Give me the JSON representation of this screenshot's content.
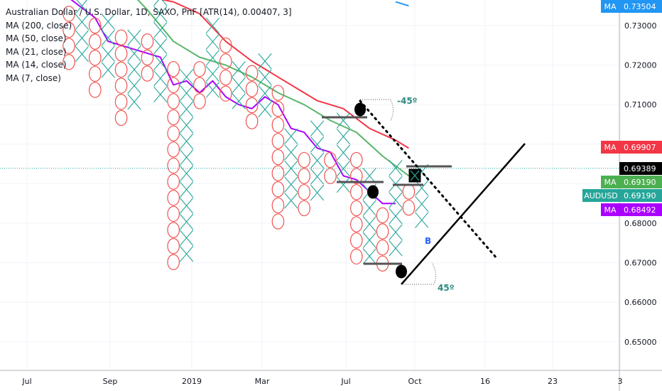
{
  "legend": {
    "title": "Australian Dollar / U.S. Dollar, 1D, SAXO, PnF [ATR(14), 0.00407, 3]",
    "ma_lines": [
      "MA (200, close)",
      "MA (50, close)",
      "MA (21, close)",
      "MA (14, close)",
      "MA (7, close)"
    ]
  },
  "chart_data": {
    "type": "point-and-figure",
    "symbol": "AUDUSD",
    "box_size": 0.00407,
    "reversal": 3,
    "y_axis": {
      "ticks": [
        "0.73000",
        "0.72000",
        "0.71000",
        "0.70000",
        "0.69000",
        "0.68000",
        "0.67000",
        "0.66000",
        "0.65000"
      ]
    },
    "x_axis": {
      "ticks": [
        "Jul",
        "Sep",
        "2019",
        "Mar",
        "Jul",
        "Oct",
        "16",
        "23",
        "3"
      ]
    },
    "price_tags": [
      {
        "label": "MA",
        "value": "0.73504",
        "color": "#2196f3"
      },
      {
        "label": "MA",
        "value": "0.69907",
        "color": "#f23645"
      },
      {
        "label": "",
        "value": "0.69389",
        "color": "#000000"
      },
      {
        "label": "MA",
        "value": "0.69190",
        "color": "#4caf50"
      },
      {
        "label": "AUDUSD",
        "value": "0.69190",
        "color": "#26a69a"
      },
      {
        "label": "MA",
        "value": "0.68492",
        "color": "#aa00ff"
      }
    ],
    "columns": [
      {
        "type": "O",
        "top": 0.733,
        "bottom": 0.7206
      },
      {
        "type": "X",
        "top": 0.735,
        "bottom": 0.7236
      },
      {
        "type": "O",
        "top": 0.73,
        "bottom": 0.713
      },
      {
        "type": "X",
        "top": 0.731,
        "bottom": 0.718
      },
      {
        "type": "O",
        "top": 0.727,
        "bottom": 0.705
      },
      {
        "type": "X",
        "top": 0.727,
        "bottom": 0.709
      },
      {
        "type": "O",
        "top": 0.726,
        "bottom": 0.718
      },
      {
        "type": "X",
        "top": 0.737,
        "bottom": 0.712
      },
      {
        "type": "O",
        "top": 0.719,
        "bottom": 0.671
      },
      {
        "type": "X",
        "top": 0.717,
        "bottom": 0.673
      },
      {
        "type": "O",
        "top": 0.719,
        "bottom": 0.709
      },
      {
        "type": "X",
        "top": 0.73,
        "bottom": 0.712
      },
      {
        "type": "O",
        "top": 0.725,
        "bottom": 0.713
      },
      {
        "type": "X",
        "top": 0.719,
        "bottom": 0.71
      },
      {
        "type": "O",
        "top": 0.718,
        "bottom": 0.705
      },
      {
        "type": "X",
        "top": 0.721,
        "bottom": 0.708
      },
      {
        "type": "O",
        "top": 0.713,
        "bottom": 0.682
      },
      {
        "type": "X",
        "top": 0.702,
        "bottom": 0.686
      },
      {
        "type": "O",
        "top": 0.696,
        "bottom": 0.682
      },
      {
        "type": "X",
        "top": 0.704,
        "bottom": 0.686
      },
      {
        "type": "O",
        "top": 0.696,
        "bottom": 0.69
      },
      {
        "type": "X",
        "top": 0.706,
        "bottom": 0.69
      },
      {
        "type": "O",
        "top": 0.696,
        "bottom": 0.672
      },
      {
        "type": "X",
        "top": 0.692,
        "bottom": 0.672
      },
      {
        "type": "O",
        "top": 0.682,
        "bottom": 0.669
      },
      {
        "type": "X",
        "top": 0.694,
        "bottom": 0.672
      },
      {
        "type": "O",
        "top": 0.688,
        "bottom": 0.682
      },
      {
        "type": "X",
        "top": 0.693,
        "bottom": 0.68
      }
    ],
    "moving_averages": [
      {
        "name": "MA (200, close)",
        "color": "#2196f3",
        "points": [
          [
            25,
            0.736
          ],
          [
            26,
            0.735
          ]
        ]
      },
      {
        "name": "MA (50, close)",
        "color": "#f23645",
        "points": [
          [
            2,
            0.741
          ],
          [
            5,
            0.738
          ],
          [
            8,
            0.736
          ],
          [
            10,
            0.733
          ],
          [
            12,
            0.726
          ],
          [
            14,
            0.721
          ],
          [
            16,
            0.717
          ],
          [
            19,
            0.711
          ],
          [
            21,
            0.709
          ],
          [
            23,
            0.704
          ],
          [
            25,
            0.701
          ],
          [
            26,
            0.699
          ]
        ]
      },
      {
        "name": "MA (21, close)",
        "color": "#5ab56a",
        "points": [
          [
            4,
            0.741
          ],
          [
            6,
            0.734
          ],
          [
            8,
            0.726
          ],
          [
            10,
            0.722
          ],
          [
            12,
            0.72
          ],
          [
            14,
            0.717
          ],
          [
            16,
            0.713
          ],
          [
            18,
            0.71
          ],
          [
            20,
            0.706
          ],
          [
            22,
            0.703
          ],
          [
            24,
            0.697
          ],
          [
            26,
            0.692
          ]
        ]
      },
      {
        "name": "MA (7, close)",
        "color": "#aa00ff",
        "points": [
          [
            0,
            0.737
          ],
          [
            2,
            0.732
          ],
          [
            3,
            0.726
          ],
          [
            5,
            0.724
          ],
          [
            6,
            0.723
          ],
          [
            7,
            0.722
          ],
          [
            8,
            0.715
          ],
          [
            9,
            0.716
          ],
          [
            10,
            0.713
          ],
          [
            11,
            0.716
          ],
          [
            12,
            0.712
          ],
          [
            13,
            0.71
          ],
          [
            14,
            0.709
          ],
          [
            15,
            0.712
          ],
          [
            16,
            0.71
          ],
          [
            17,
            0.704
          ],
          [
            18,
            0.703
          ],
          [
            19,
            0.699
          ],
          [
            20,
            0.698
          ],
          [
            21,
            0.692
          ],
          [
            22,
            0.691
          ],
          [
            23,
            0.688
          ],
          [
            24,
            0.685
          ],
          [
            25,
            0.685
          ]
        ]
      }
    ],
    "annotations": {
      "angle_top": "-45º",
      "angle_bottom": "45º",
      "marker": "B"
    }
  }
}
